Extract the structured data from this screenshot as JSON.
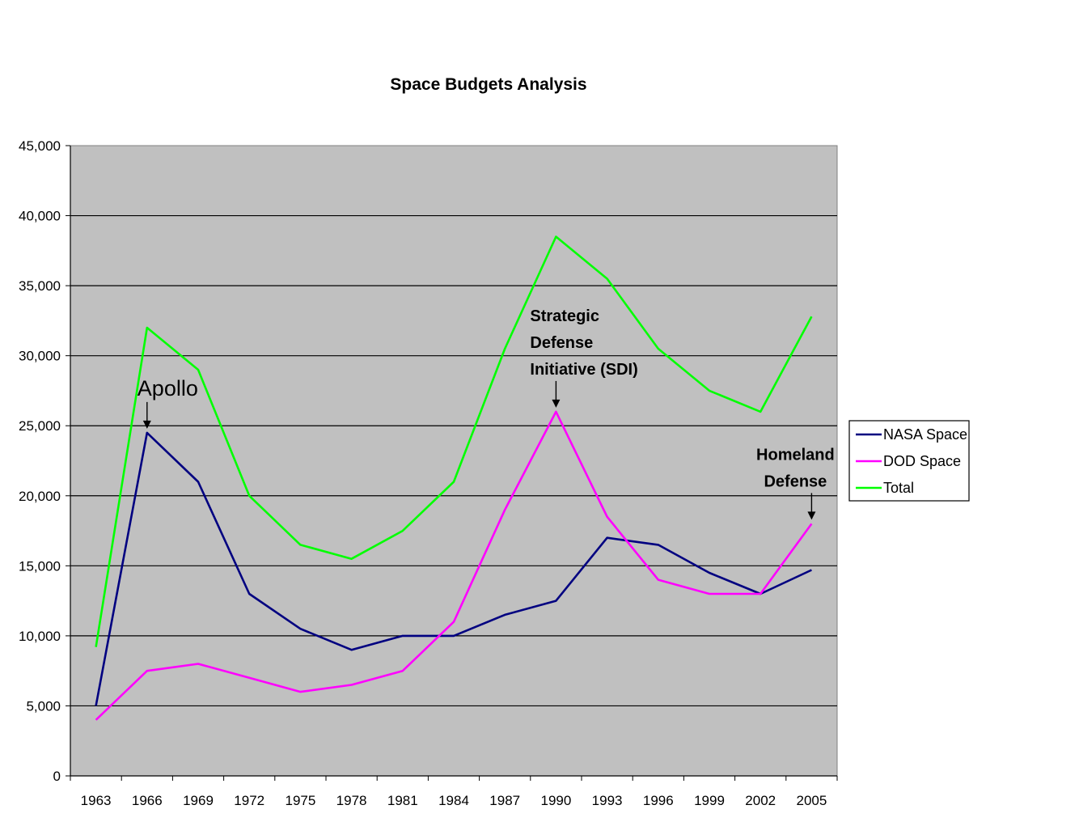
{
  "chart_data": {
    "type": "line",
    "title": "Space Budgets Analysis",
    "xlabel": "",
    "ylabel": "",
    "ylim": [
      0,
      45000
    ],
    "yticks": [
      "0",
      "5,000",
      "10,000",
      "15,000",
      "20,000",
      "25,000",
      "30,000",
      "35,000",
      "40,000",
      "45,000"
    ],
    "ytick_values": [
      0,
      5000,
      10000,
      15000,
      20000,
      25000,
      30000,
      35000,
      40000,
      45000
    ],
    "categories": [
      "1963",
      "1966",
      "1969",
      "1972",
      "1975",
      "1978",
      "1981",
      "1984",
      "1987",
      "1990",
      "1993",
      "1996",
      "1999",
      "2002",
      "2005"
    ],
    "grid": true,
    "legend_position": "right",
    "colors": {
      "plot_background": "#c0c0c0",
      "grid": "#000000"
    },
    "series": [
      {
        "name": "NASA Space",
        "color": "#000080",
        "values": [
          5000,
          24500,
          21000,
          13000,
          10500,
          9000,
          10000,
          10000,
          11500,
          12500,
          17000,
          16500,
          14500,
          13000,
          14700
        ]
      },
      {
        "name": "DOD Space",
        "color": "#ff00ff",
        "values": [
          4000,
          7500,
          8000,
          7000,
          6000,
          6500,
          7500,
          11000,
          19000,
          26000,
          18500,
          14000,
          13000,
          13000,
          18000
        ]
      },
      {
        "name": "Total",
        "color": "#00ff00",
        "values": [
          9200,
          32000,
          29000,
          20000,
          16500,
          15500,
          17500,
          21000,
          30500,
          38500,
          35500,
          30500,
          27500,
          26000,
          32800
        ]
      }
    ],
    "annotations": [
      {
        "lines": [
          "Apollo"
        ],
        "category": "1966",
        "value": 24500,
        "style": "plain"
      },
      {
        "lines": [
          "Strategic",
          "Defense",
          "Initiative (SDI)"
        ],
        "category": "1990",
        "value": 26000,
        "style": "bold"
      },
      {
        "lines": [
          "Homeland",
          "Defense"
        ],
        "category": "2005",
        "value": 18000,
        "style": "bold"
      }
    ]
  }
}
